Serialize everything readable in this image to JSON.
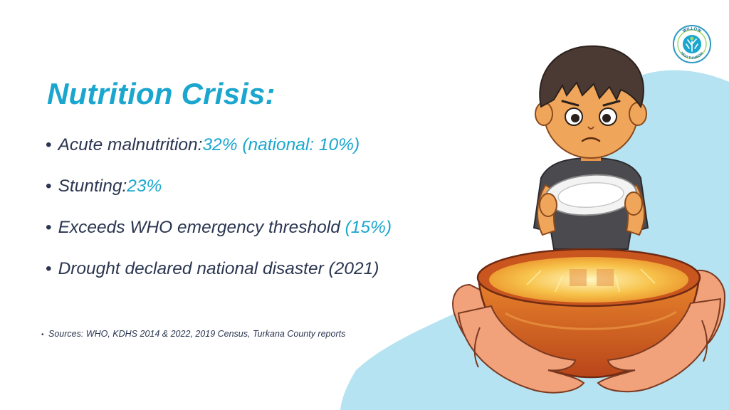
{
  "slide": {
    "title": "Nutrition Crisis:",
    "bullets": [
      {
        "text": "Acute malnutrition:",
        "highlight": "32% (national: 10%)"
      },
      {
        "text": "Stunting:",
        "highlight": "23%"
      },
      {
        "text": "Exceeds WHO emergency threshold ",
        "highlight": "(15%)"
      },
      {
        "text": "Drought declared national disaster (2021)",
        "highlight": ""
      }
    ],
    "bullet_glyph": "•",
    "sources": "Sources: WHO, KDHS 2014 & 2022, 2019 Census, Turkana County reports"
  },
  "logo": {
    "text": "WILLOW HEALTH MEDIA"
  },
  "colors": {
    "accent": "#1aa6cf",
    "text": "#2a3550",
    "blob": "#b6e3f1",
    "bowl": "#e07a2a"
  },
  "icons": [
    "willow-health-media-logo",
    "hungry-child-illustration",
    "food-bowl-illustration"
  ]
}
